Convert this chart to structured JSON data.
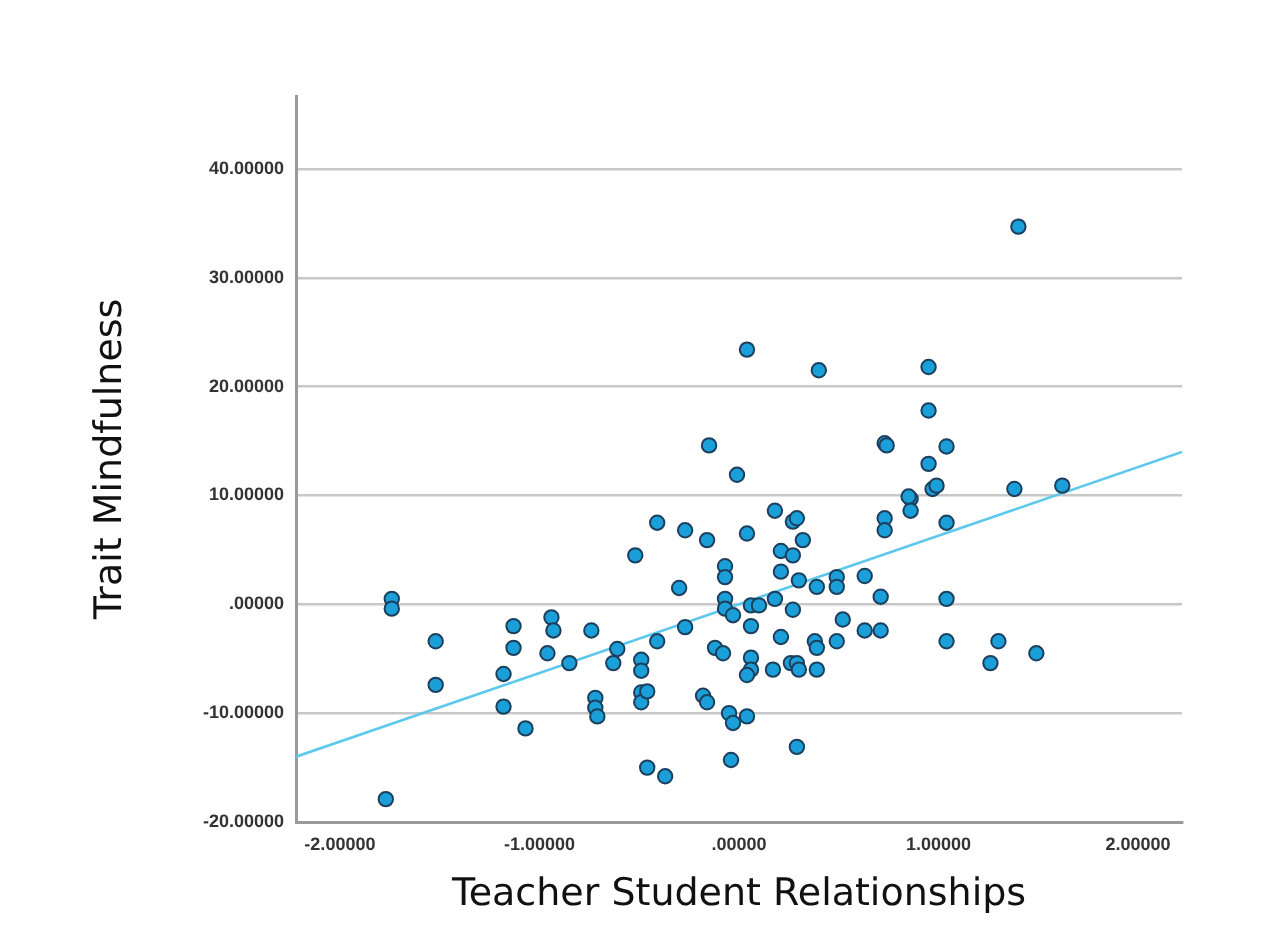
{
  "chart_data": {
    "type": "scatter",
    "xlabel": "Teacher Student Relationships",
    "ylabel": "Trait Mindfulness",
    "xlim": [
      -2.22,
      2.22
    ],
    "ylim": [
      -20,
      46.7
    ],
    "xticks": [
      {
        "value": -2,
        "label": "-2.00000"
      },
      {
        "value": -1,
        "label": "-1.00000"
      },
      {
        "value": 0,
        "label": ".00000"
      },
      {
        "value": 1,
        "label": "1.00000"
      },
      {
        "value": 2,
        "label": "2.00000"
      }
    ],
    "yticks": [
      {
        "value": -20,
        "label": "-20.00000"
      },
      {
        "value": -10,
        "label": "-10.00000"
      },
      {
        "value": 0,
        "label": ".00000"
      },
      {
        "value": 10,
        "label": "10.00000"
      },
      {
        "value": 20,
        "label": "20.00000"
      },
      {
        "value": 30,
        "label": "30.00000"
      },
      {
        "value": 40,
        "label": "40.00000"
      }
    ],
    "grid": "y",
    "legend": false,
    "series": [
      {
        "marker": "circle",
        "color": "#1a9fd8",
        "x": [
          -1.74,
          -1.74,
          -1.52,
          -1.52,
          -1.77,
          -1.13,
          -1.13,
          -1.18,
          -1.18,
          -1.07,
          -0.94,
          -0.93,
          -0.96,
          -0.85,
          -0.74,
          -0.72,
          -0.72,
          -0.71,
          -0.63,
          -0.61,
          -0.49,
          -0.49,
          -0.49,
          -0.49,
          -0.46,
          -0.46,
          -0.37,
          -0.52,
          -0.41,
          -0.27,
          -0.16,
          -0.3,
          -0.27,
          -0.41,
          -0.18,
          -0.16,
          -0.12,
          -0.08,
          -0.07,
          -0.07,
          -0.07,
          -0.07,
          -0.03,
          -0.05,
          -0.03,
          -0.04,
          0.04,
          0.29,
          0.06,
          0.1,
          0.06,
          0.06,
          0.06,
          0.04,
          0.04,
          0.18,
          0.27,
          0.29,
          0.32,
          0.21,
          0.27,
          0.21,
          0.18,
          0.27,
          0.3,
          0.39,
          0.49,
          0.49,
          0.21,
          0.26,
          0.29,
          0.3,
          0.17,
          0.38,
          0.39,
          0.39,
          0.49,
          0.52,
          0.63,
          0.63,
          0.71,
          0.71,
          0.73,
          0.73,
          0.86,
          0.86,
          1.04,
          1.04,
          1.04,
          1.3,
          1.26,
          1.49,
          1.4,
          0.04,
          0.4,
          0.95,
          0.95,
          0.73,
          0.74,
          1.04,
          0.95,
          -0.01,
          0.97,
          0.99,
          1.38,
          1.62,
          0.85,
          -0.15
        ],
        "values": [
          0.5,
          -0.4,
          -3.4,
          -7.4,
          -17.9,
          -2.0,
          -4.0,
          -6.4,
          -9.4,
          -11.4,
          -1.2,
          -2.4,
          -4.5,
          -5.4,
          -2.4,
          -8.6,
          -9.5,
          -10.3,
          -5.4,
          -4.1,
          -5.1,
          -6.1,
          -8.1,
          -9.0,
          -8.0,
          -15.0,
          -15.8,
          4.5,
          7.5,
          6.8,
          5.9,
          1.5,
          -2.1,
          -3.4,
          -8.4,
          -9.0,
          -4.0,
          -4.5,
          3.5,
          2.5,
          0.5,
          -0.4,
          -1.0,
          -10.0,
          -10.9,
          -14.3,
          -10.3,
          -13.1,
          -0.1,
          -0.1,
          -2.0,
          -4.9,
          -6.0,
          -6.5,
          6.5,
          8.6,
          7.6,
          7.9,
          5.9,
          4.9,
          4.5,
          3.0,
          0.5,
          -0.5,
          2.2,
          1.6,
          2.5,
          1.6,
          -3.0,
          -5.4,
          -5.4,
          -6.0,
          -6.0,
          -3.4,
          -4.0,
          -6.0,
          -3.4,
          -1.4,
          2.6,
          -2.4,
          -2.4,
          0.7,
          7.9,
          6.8,
          9.7,
          8.6,
          7.5,
          0.5,
          -3.4,
          -3.4,
          -5.4,
          -4.5,
          34.7,
          23.4,
          21.5,
          21.8,
          17.8,
          14.8,
          14.6,
          14.5,
          12.9,
          11.9,
          10.6,
          10.9,
          10.6,
          10.9,
          9.9,
          14.6
        ]
      },
      {
        "type": "line",
        "marker": "none",
        "color": "#5cc8ec",
        "x": [
          -2.22,
          2.22
        ],
        "values": [
          -14,
          14
        ]
      }
    ]
  }
}
